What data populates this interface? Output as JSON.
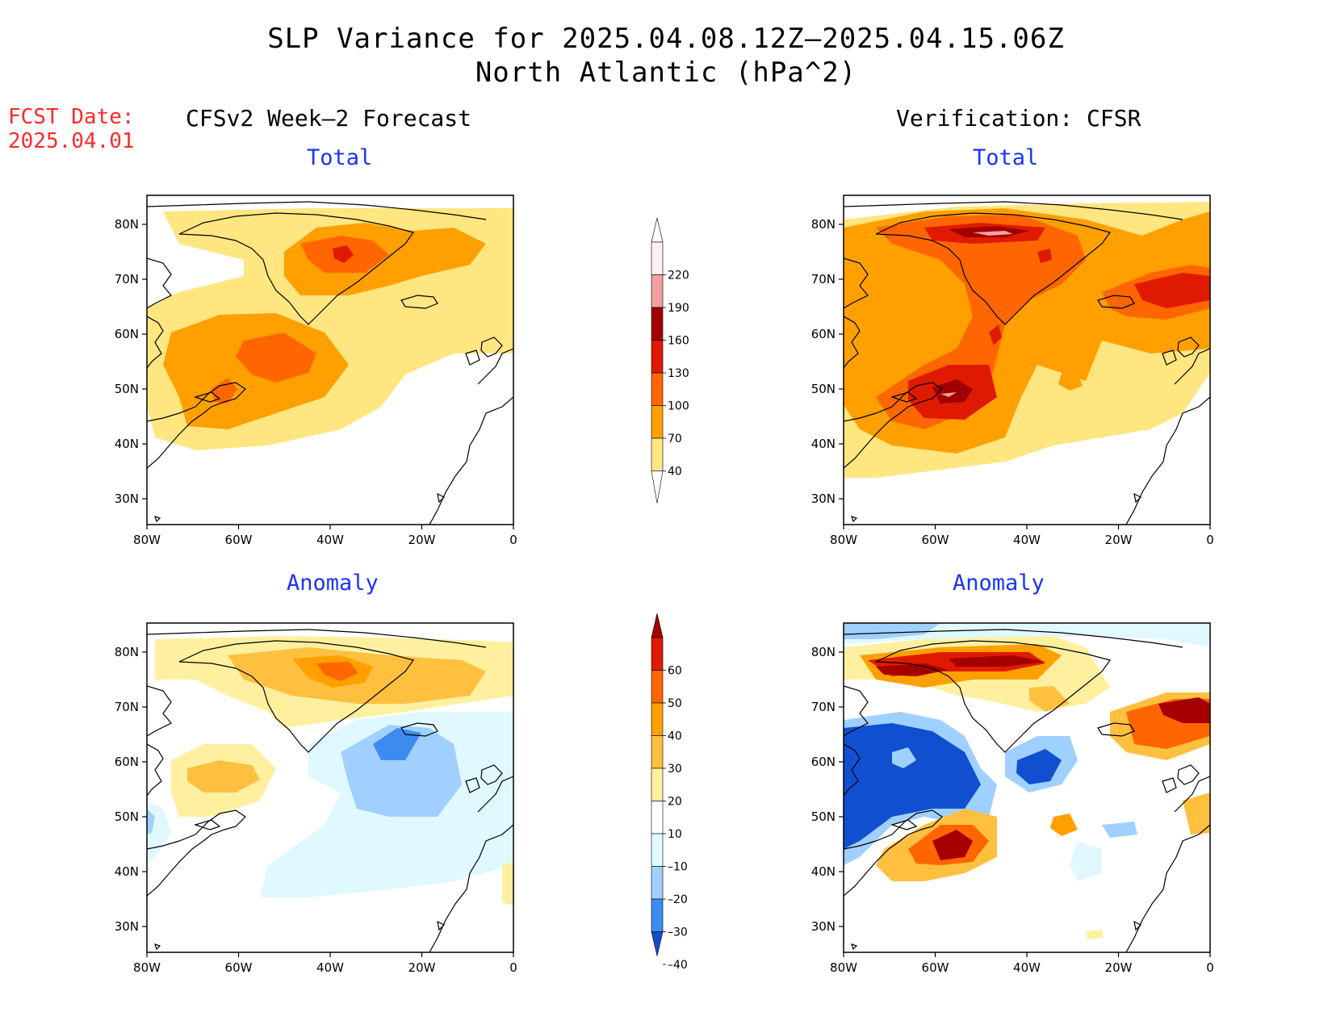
{
  "title": {
    "line1": "SLP Variance for 2025.04.08.12Z–2025.04.15.06Z",
    "line2": "North Atlantic (hPa^2)"
  },
  "fcst_date": {
    "label": "FCST Date:",
    "value": "2025.04.01"
  },
  "columns": {
    "left": "CFSv2 Week–2 Forecast",
    "right": "Verification: CFSR"
  },
  "panels": {
    "fcst_total": "Total",
    "verif_total": "Total",
    "fcst_anom": "Anomaly",
    "verif_anom": "Anomaly"
  },
  "map_axes": {
    "lat_labels": [
      "80N",
      "70N",
      "60N",
      "50N",
      "40N",
      "30N"
    ],
    "lon_labels": [
      "80W",
      "60W",
      "40W",
      "20W",
      "0"
    ]
  },
  "colorbars": {
    "total": {
      "levels": [
        "220",
        "190",
        "160",
        "130",
        "100",
        "70",
        "40"
      ],
      "colors": [
        "#fff0f0",
        "#f4a0a0",
        "#a00000",
        "#e01a00",
        "#ff6600",
        "#ffa000",
        "#ffe680"
      ]
    },
    "anomaly": {
      "levels": [
        "60",
        "50",
        "40",
        "30",
        "20",
        "10",
        "–10",
        "–20",
        "–30",
        "–40"
      ],
      "colors": [
        "#a50000",
        "#e01a00",
        "#ff6600",
        "#ffa000",
        "#ffc040",
        "#fff0a0",
        "#ffffff",
        "#e0f8ff",
        "#a0d0ff",
        "#3c8cf0",
        "#1050d0"
      ]
    }
  }
}
